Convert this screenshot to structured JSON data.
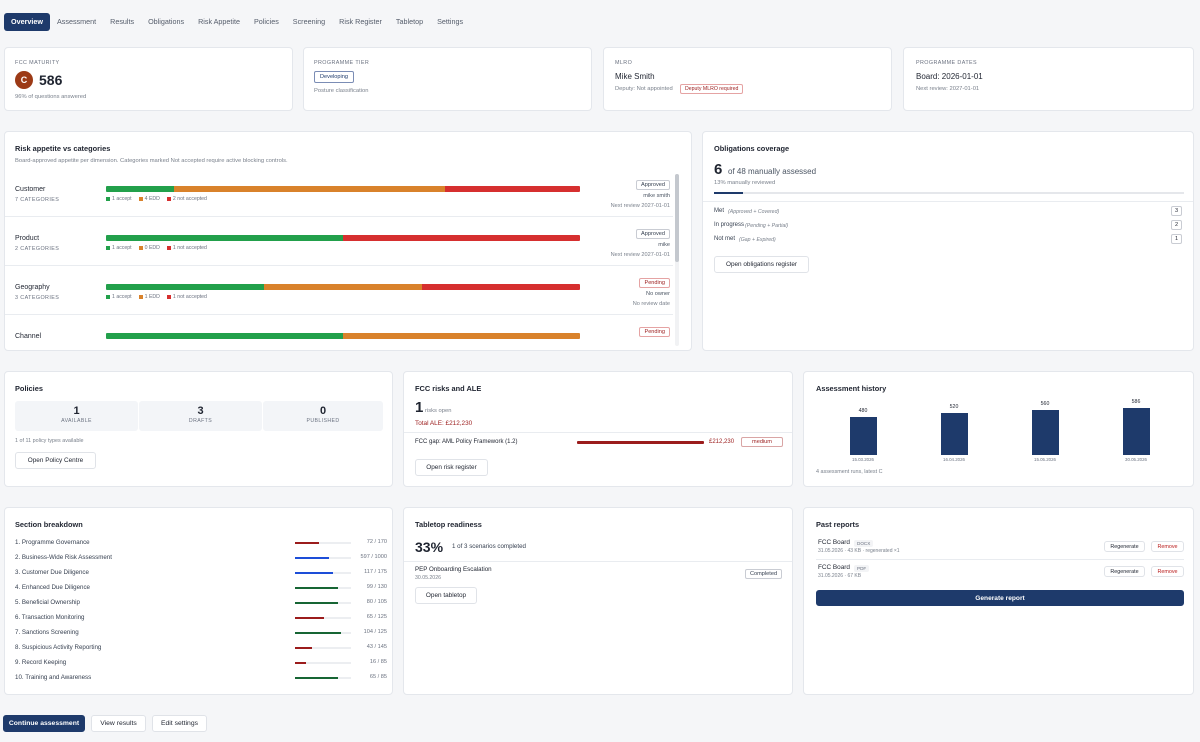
{
  "nav": [
    "Overview",
    "Assessment",
    "Results",
    "Obligations",
    "Risk Appetite",
    "Policies",
    "Screening",
    "Risk Register",
    "Tabletop",
    "Settings"
  ],
  "maturity": {
    "label": "FCC MATURITY",
    "avatar": "C",
    "score": "586",
    "sub": "96% of questions answered"
  },
  "tier": {
    "label": "PROGRAMME TIER",
    "badge": "Developing",
    "sub": "Posture classification"
  },
  "mlro": {
    "label": "MLRO",
    "name": "Mike Smith",
    "deputy": "Deputy: Not appointed",
    "badge": "Deputy MLRO required"
  },
  "dates": {
    "label": "PROGRAMME DATES",
    "board": "Board: 2026-01-01",
    "review": "Next review: 2027-01-01"
  },
  "risk_appetite": {
    "title": "Risk appetite vs categories",
    "sub": "Board-approved appetite per dimension. Categories marked Not accepted require active blocking controls.",
    "rows": [
      {
        "name": "Customer",
        "cats": "7 CATEGORIES",
        "accept": 1,
        "edd": 4,
        "not": 2,
        "l1": "1 accept",
        "l2": "4 EDD",
        "l3": "2 not accepted",
        "status": "Approved",
        "owner": "mike smith",
        "review": "Next review 2027-01-01"
      },
      {
        "name": "Product",
        "cats": "2 CATEGORIES",
        "accept": 1,
        "edd": 0,
        "not": 1,
        "l1": "1 accept",
        "l2": "0 EDD",
        "l3": "1 not accepted",
        "status": "Approved",
        "owner": "mike",
        "review": "Next review 2027-01-01"
      },
      {
        "name": "Geography",
        "cats": "3 CATEGORIES",
        "accept": 1,
        "edd": 1,
        "not": 1,
        "l1": "1 accept",
        "l2": "1 EDD",
        "l3": "1 not accepted",
        "status": "Pending",
        "owner": "No owner",
        "review": "No review date"
      },
      {
        "name": "Channel",
        "cats": "",
        "accept": 1,
        "edd": 1,
        "not": 0,
        "l1": "",
        "l2": "",
        "l3": "",
        "status": "Pending",
        "owner": "",
        "review": ""
      }
    ]
  },
  "obligations": {
    "title": "Obligations coverage",
    "big": "6",
    "of": "of 48 manually assessed",
    "pct": "13% manually reviewed",
    "progress": 0.13,
    "rows": [
      {
        "label": "Met",
        "hint": "(Approved + Covered)",
        "count": "3"
      },
      {
        "label": "In progress",
        "hint": "(Pending + Partial)",
        "count": "2"
      },
      {
        "label": "Not met",
        "hint": "(Gap + Expired)",
        "count": "1"
      }
    ],
    "button": "Open obligations register"
  },
  "policies": {
    "title": "Policies",
    "boxes": [
      {
        "n": "1",
        "l": "AVAILABLE"
      },
      {
        "n": "3",
        "l": "DRAFTS"
      },
      {
        "n": "0",
        "l": "PUBLISHED"
      }
    ],
    "sub": "1 of 11 policy types available",
    "button": "Open Policy Centre"
  },
  "fcc_risks": {
    "title": "FCC risks and ALE",
    "big": "1",
    "unit": "risks open",
    "total": "Total ALE: £212,230",
    "item": "FCC gap: AML Policy Framework (1.2)",
    "amount": "£212,230",
    "badge": "medium",
    "button": "Open risk register"
  },
  "history": {
    "title": "Assessment history",
    "points": [
      {
        "v": 480,
        "d": "15.03.2026"
      },
      {
        "v": 520,
        "d": "16.04.2026"
      },
      {
        "v": 560,
        "d": "15.05.2026"
      },
      {
        "v": 586,
        "d": "30.05.2026"
      }
    ],
    "sub": "4 assessment runs, latest C"
  },
  "sections": {
    "title": "Section breakdown",
    "rows": [
      {
        "name": "1. Programme Governance",
        "score": "72 / 170",
        "frac": 0.42,
        "color": "#9b1c1c"
      },
      {
        "name": "2. Business-Wide Risk Assessment",
        "score": "597 / 1000",
        "frac": 0.6,
        "color": "#1d4ed8"
      },
      {
        "name": "3. Customer Due Diligence",
        "score": "117 / 175",
        "frac": 0.67,
        "color": "#1d4ed8"
      },
      {
        "name": "4. Enhanced Due Diligence",
        "score": "99 / 130",
        "frac": 0.76,
        "color": "#166534"
      },
      {
        "name": "5. Beneficial Ownership",
        "score": "80 / 105",
        "frac": 0.76,
        "color": "#166534"
      },
      {
        "name": "6. Transaction Monitoring",
        "score": "65 / 125",
        "frac": 0.52,
        "color": "#9b1c1c"
      },
      {
        "name": "7. Sanctions Screening",
        "score": "104 / 125",
        "frac": 0.83,
        "color": "#166534"
      },
      {
        "name": "8. Suspicious Activity Reporting",
        "score": "43 / 145",
        "frac": 0.3,
        "color": "#9b1c1c"
      },
      {
        "name": "9. Record Keeping",
        "score": "16 / 85",
        "frac": 0.19,
        "color": "#9b1c1c"
      },
      {
        "name": "10. Training and Awareness",
        "score": "65 / 85",
        "frac": 0.76,
        "color": "#166534"
      }
    ]
  },
  "tabletop": {
    "title": "Tabletop readiness",
    "big": "33%",
    "sub": "1 of 3 scenarios completed",
    "scenario": "PEP Onboarding Escalation",
    "date": "30.05.2026",
    "badge": "Completed",
    "button": "Open tabletop"
  },
  "reports": {
    "title": "Past reports",
    "items": [
      {
        "name": "FCC Board",
        "fmt": "DOCX",
        "meta": "31.05.2026 · 43 KB · regenerated ×1",
        "regen": "Regenerate",
        "remove": "Remove"
      },
      {
        "name": "FCC Board",
        "fmt": "PDF",
        "meta": "31.05.2026 · 67 KB",
        "regen": "Regenerate",
        "remove": "Remove"
      }
    ],
    "generate": "Generate report"
  },
  "footer": {
    "continue": "Continue assessment",
    "view": "View results",
    "edit": "Edit settings"
  },
  "colors": {
    "accept": "#22a04b",
    "edd": "#d9822b",
    "not": "#d62f2f",
    "primary": "#1e3a6b"
  }
}
